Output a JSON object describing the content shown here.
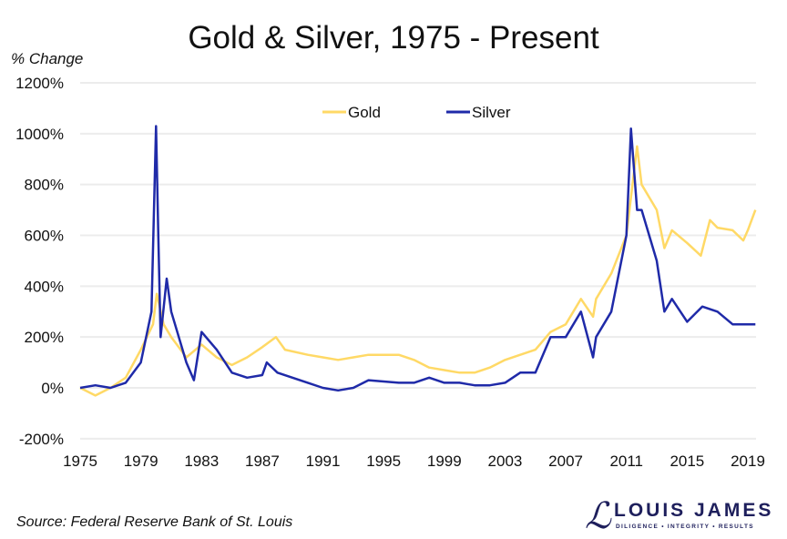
{
  "chart_data": {
    "type": "line",
    "title": "Gold & Silver, 1975 - Present",
    "ylabel": "% Change",
    "xlabel": "",
    "xlim": [
      1975,
      2019.6
    ],
    "ylim": [
      -200,
      1200
    ],
    "x_ticks": [
      "1975",
      "1979",
      "1983",
      "1987",
      "1991",
      "1995",
      "1999",
      "2003",
      "2007",
      "2011",
      "2015",
      "2019"
    ],
    "y_ticks": [
      "-200%",
      "0%",
      "200%",
      "400%",
      "600%",
      "800%",
      "1000%",
      "1200%"
    ],
    "grid": true,
    "legend_position": "top-center",
    "series": [
      {
        "name": "Gold",
        "color": "#FFD966",
        "x": [
          1975,
          1976,
          1977,
          1978,
          1979,
          1979.8,
          1980.05,
          1980.5,
          1981,
          1982,
          1983,
          1984,
          1985,
          1986,
          1987,
          1987.9,
          1988.5,
          1990,
          1991,
          1992,
          1993,
          1994,
          1995,
          1996,
          1997,
          1998,
          1999,
          2000,
          2001,
          2002,
          2003,
          2004,
          2005,
          2006,
          2007,
          2008,
          2008.8,
          2009,
          2010,
          2011,
          2011.7,
          2012,
          2013,
          2013.5,
          2014,
          2015,
          2015.9,
          2016.5,
          2017,
          2018,
          2018.7,
          2019,
          2019.5
        ],
        "y": [
          0,
          -30,
          0,
          40,
          150,
          250,
          370,
          250,
          200,
          120,
          170,
          120,
          90,
          120,
          160,
          200,
          150,
          130,
          120,
          110,
          120,
          130,
          130,
          130,
          110,
          80,
          70,
          60,
          60,
          80,
          110,
          130,
          150,
          220,
          250,
          350,
          280,
          350,
          450,
          600,
          950,
          800,
          700,
          550,
          620,
          570,
          520,
          660,
          630,
          620,
          580,
          620,
          700
        ]
      },
      {
        "name": "Silver",
        "color": "#1F2AA8",
        "x": [
          1975,
          1976,
          1977,
          1978,
          1979,
          1979.7,
          1980.0,
          1980.15,
          1980.3,
          1980.7,
          1981,
          1982,
          1982.5,
          1983,
          1984,
          1985,
          1986,
          1987,
          1987.3,
          1988,
          1990,
          1991,
          1992,
          1993,
          1994,
          1996,
          1997,
          1998,
          1999,
          2000,
          2001,
          2002,
          2003,
          2004,
          2005,
          2006,
          2007,
          2008,
          2008.8,
          2009,
          2010,
          2011,
          2011.3,
          2011.7,
          2012,
          2013,
          2013.5,
          2014,
          2015,
          2016,
          2017,
          2018,
          2019,
          2019.5
        ],
        "y": [
          0,
          10,
          0,
          20,
          100,
          300,
          1030,
          600,
          200,
          430,
          300,
          100,
          30,
          220,
          150,
          60,
          40,
          50,
          100,
          60,
          20,
          0,
          -10,
          0,
          30,
          20,
          20,
          40,
          20,
          20,
          10,
          10,
          20,
          60,
          60,
          200,
          200,
          300,
          120,
          200,
          300,
          600,
          1020,
          700,
          700,
          500,
          300,
          350,
          260,
          320,
          300,
          250,
          250,
          250
        ]
      }
    ]
  },
  "source": "Source: Federal Reserve Bank of St. Louis",
  "logo": {
    "name": "LOUIS JAMES",
    "tagline": "DILIGENCE • INTEGRITY • RESULTS",
    "color": "#1E1F5C"
  }
}
